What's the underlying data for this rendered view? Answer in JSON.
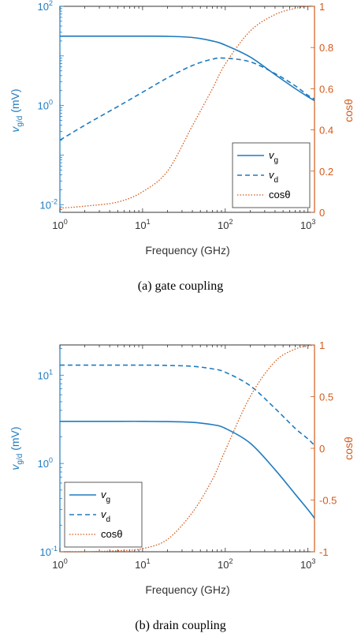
{
  "colors": {
    "vg": "#1f7bbf",
    "vd": "#1f7bbf",
    "cos": "#d45a1a",
    "axis": "#333333"
  },
  "chart_data": [
    {
      "type": "line",
      "caption": "(a) gate coupling",
      "xlabel": "Frequency (GHz)",
      "ylabel_left": "v_{g/d} (mV)",
      "ylabel_right": "cosθ",
      "x_scale": "log",
      "y_left_scale": "log",
      "xlim": [
        1,
        1200
      ],
      "ylim_left": [
        0.007,
        100
      ],
      "ylim_right": [
        0,
        1
      ],
      "x_ticks": [
        {
          "v": 1,
          "b": "10",
          "e": "0"
        },
        {
          "v": 10,
          "b": "10",
          "e": "1"
        },
        {
          "v": 100,
          "b": "10",
          "e": "2"
        },
        {
          "v": 1000,
          "b": "10",
          "e": "3"
        }
      ],
      "y_left_ticks": [
        {
          "v": 0.01,
          "b": "10",
          "e": "-2"
        },
        {
          "v": 1,
          "b": "10",
          "e": "0"
        },
        {
          "v": 100,
          "b": "10",
          "e": "2"
        }
      ],
      "y_right_ticks": [
        {
          "v": 0,
          "l": "0"
        },
        {
          "v": 0.2,
          "l": "0.2"
        },
        {
          "v": 0.4,
          "l": "0.4"
        },
        {
          "v": 0.6,
          "l": "0.6"
        },
        {
          "v": 0.8,
          "l": "0.8"
        },
        {
          "v": 1,
          "l": "1"
        }
      ],
      "legend": {
        "position": "lower-right",
        "entries": [
          {
            "key": "vg",
            "main": "v",
            "sub": "g"
          },
          {
            "key": "vd",
            "main": "v",
            "sub": "d"
          },
          {
            "key": "cos",
            "main": "cosθ",
            "sub": ""
          }
        ]
      },
      "x": [
        1,
        2,
        5,
        10,
        20,
        40,
        70,
        100,
        200,
        400,
        700,
        1000,
        1200
      ],
      "series": [
        {
          "key": "vg",
          "axis": "left",
          "style": "solid",
          "y": [
            25,
            25,
            25,
            25,
            24.8,
            23.5,
            20,
            16.5,
            9.5,
            4.2,
            2.2,
            1.5,
            1.25
          ]
        },
        {
          "key": "vd",
          "axis": "left",
          "style": "dashed",
          "y": [
            0.2,
            0.4,
            0.95,
            1.85,
            3.6,
            6.4,
            8.6,
            9.0,
            7.6,
            4.4,
            2.5,
            1.6,
            1.35
          ]
        },
        {
          "key": "cos",
          "axis": "right",
          "style": "dotted",
          "y": [
            0.02,
            0.03,
            0.05,
            0.1,
            0.2,
            0.42,
            0.6,
            0.72,
            0.88,
            0.96,
            0.99,
            1.0,
            1.0
          ]
        }
      ]
    },
    {
      "type": "line",
      "caption": "(b) drain coupling",
      "xlabel": "Frequency (GHz)",
      "ylabel_left": "v_{g/d} (mV)",
      "ylabel_right": "cosθ",
      "x_scale": "log",
      "y_left_scale": "log",
      "xlim": [
        1,
        1200
      ],
      "ylim_left": [
        0.1,
        22
      ],
      "ylim_right": [
        -1,
        1
      ],
      "x_ticks": [
        {
          "v": 1,
          "b": "10",
          "e": "0"
        },
        {
          "v": 10,
          "b": "10",
          "e": "1"
        },
        {
          "v": 100,
          "b": "10",
          "e": "2"
        },
        {
          "v": 1000,
          "b": "10",
          "e": "3"
        }
      ],
      "y_left_ticks": [
        {
          "v": 0.1,
          "b": "10",
          "e": "-1"
        },
        {
          "v": 1,
          "b": "10",
          "e": "0"
        },
        {
          "v": 10,
          "b": "10",
          "e": "1"
        }
      ],
      "y_right_ticks": [
        {
          "v": -1,
          "l": "-1"
        },
        {
          "v": -0.5,
          "l": "-0.5"
        },
        {
          "v": 0,
          "l": "0"
        },
        {
          "v": 0.5,
          "l": "0.5"
        },
        {
          "v": 1,
          "l": "1"
        }
      ],
      "legend": {
        "position": "lower-left",
        "entries": [
          {
            "key": "vg",
            "main": "v",
            "sub": "g"
          },
          {
            "key": "vd",
            "main": "v",
            "sub": "d"
          },
          {
            "key": "cos",
            "main": "cosθ",
            "sub": ""
          }
        ]
      },
      "x": [
        1,
        2,
        5,
        10,
        20,
        40,
        70,
        100,
        200,
        400,
        700,
        1000,
        1200
      ],
      "series": [
        {
          "key": "vg",
          "axis": "left",
          "style": "solid",
          "y": [
            3.0,
            3.0,
            3.0,
            3.0,
            2.98,
            2.92,
            2.75,
            2.5,
            1.7,
            0.85,
            0.45,
            0.3,
            0.24
          ]
        },
        {
          "key": "vd",
          "axis": "left",
          "style": "dashed",
          "y": [
            13,
            13,
            13,
            13,
            12.9,
            12.6,
            11.8,
            10.8,
            7.6,
            4.2,
            2.5,
            1.9,
            1.6
          ]
        },
        {
          "key": "cos",
          "axis": "right",
          "style": "dotted",
          "y": [
            -1.0,
            -1.0,
            -0.99,
            -0.97,
            -0.88,
            -0.62,
            -0.3,
            -0.02,
            0.5,
            0.84,
            0.96,
            0.99,
            1.0
          ]
        }
      ]
    }
  ]
}
